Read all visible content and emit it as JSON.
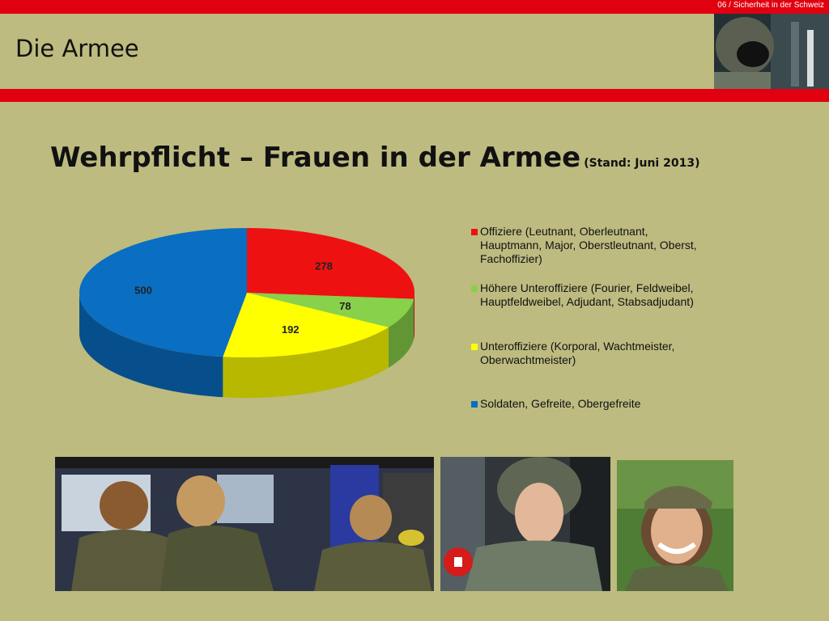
{
  "header": {
    "section_label": "06 / Sicherheit in der Schweiz",
    "slide_title": "Die Armee"
  },
  "headline": {
    "title": "Wehrpflicht – Frauen in der Armee",
    "stand": "(Stand: Juni 2013)"
  },
  "chart_data": {
    "type": "pie",
    "three_d": true,
    "values": [
      278,
      78,
      192,
      500
    ],
    "labels": [
      "Offiziere (Leutnant, Oberleutnant,\nHauptmann, Major, Oberstleutnant, Oberst,\nFachoffizier)",
      "Höhere Unteroffiziere (Fourier, Feldweibel,\nHauptfeldweibel, Adjudant, Stabsadjudant)",
      "Unteroffiziere (Korporal, Wachtmeister,\nOberwachtmeister)",
      "Soldaten, Gefreite, Obergefreite"
    ],
    "colors": [
      "#ee1111",
      "#88d14a",
      "#ffff00",
      "#0a6ec2"
    ],
    "legend_position": "right",
    "data_labels_shown": true
  },
  "images": [
    {
      "name": "helmet-pilot-photo"
    },
    {
      "name": "soldiers-back-photo"
    },
    {
      "name": "female-pilot-photo"
    },
    {
      "name": "smiling-soldier-photo"
    }
  ]
}
